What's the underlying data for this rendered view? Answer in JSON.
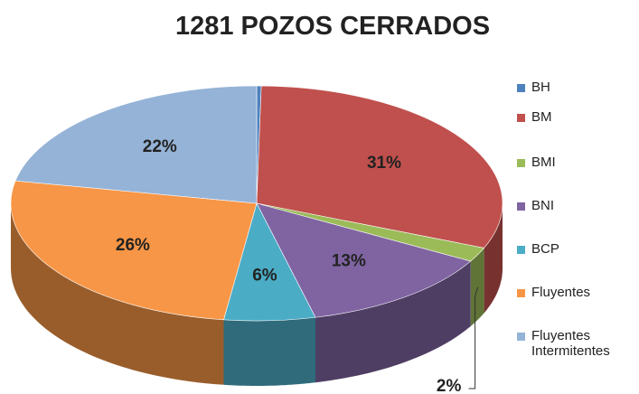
{
  "chart_data": {
    "type": "pie3d",
    "title": "1281 POZOS CERRADOS",
    "categories": [
      "BH",
      "BM",
      "BMI",
      "BNI",
      "BCP",
      "Fluyentes",
      "Fluyentes Intermitentes"
    ],
    "values": [
      0.3,
      31,
      2,
      13,
      6,
      26,
      22
    ],
    "value_labels": [
      null,
      "31%",
      "2%",
      "13%",
      "6%",
      "26%",
      "22%"
    ],
    "colors": [
      "#4f81bd",
      "#c0504d",
      "#9bbb59",
      "#8064a2",
      "#4bacc6",
      "#f79646",
      "#95b3d7"
    ],
    "legend": "right"
  }
}
